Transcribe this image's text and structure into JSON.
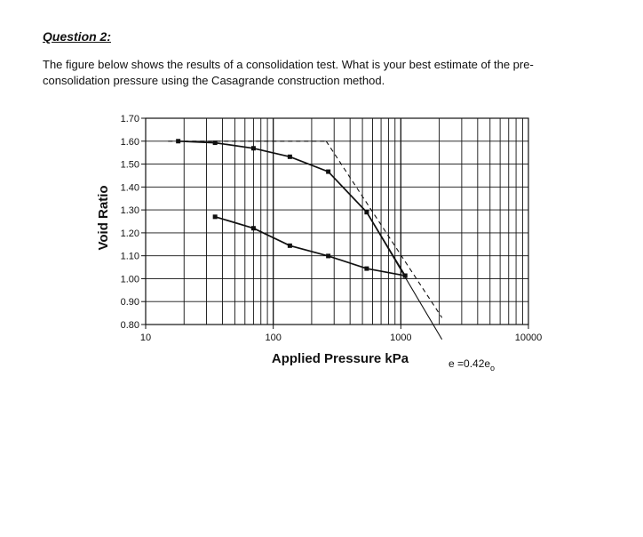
{
  "question": {
    "heading": "Question 2:",
    "text": "The figure below shows the results of a consolidation test. What is your best estimate of the pre-consolidation pressure using the Casagrande construction method."
  },
  "chart_data": {
    "type": "line",
    "xlabel": "Applied Pressure  kPa",
    "ylabel": "Void Ratio",
    "x_scale": "log",
    "xlim": [
      10,
      10000
    ],
    "ylim": [
      0.8,
      1.7
    ],
    "x_ticks": [
      "10",
      "100",
      "1000",
      "10000"
    ],
    "y_ticks": [
      "1.70",
      "1.60",
      "1.50",
      "1.40",
      "1.30",
      "1.20",
      "1.10",
      "1.00",
      "0.90",
      "0.80"
    ],
    "grid": true,
    "series": [
      {
        "role": "loading",
        "x": [
          18,
          35,
          70,
          135,
          270,
          540,
          1080
        ],
        "y": [
          1.6,
          1.593,
          1.569,
          1.532,
          1.467,
          1.29,
          1.013
        ]
      },
      {
        "role": "unloading",
        "x": [
          1080,
          540,
          270,
          135,
          70,
          35
        ],
        "y": [
          1.013,
          1.044,
          1.099,
          1.144,
          1.22,
          1.27
        ]
      }
    ],
    "constructions": [
      {
        "style": "dashed",
        "x": [
          15,
          260
        ],
        "y": [
          1.6,
          1.6
        ]
      },
      {
        "style": "dashed",
        "x": [
          260,
          2100
        ],
        "y": [
          1.6,
          0.83
        ]
      },
      {
        "style": "solid",
        "x": [
          540,
          2100
        ],
        "y": [
          1.29,
          0.735
        ]
      }
    ],
    "annotation": "e =0.42e",
    "annotation_sub": "o"
  }
}
